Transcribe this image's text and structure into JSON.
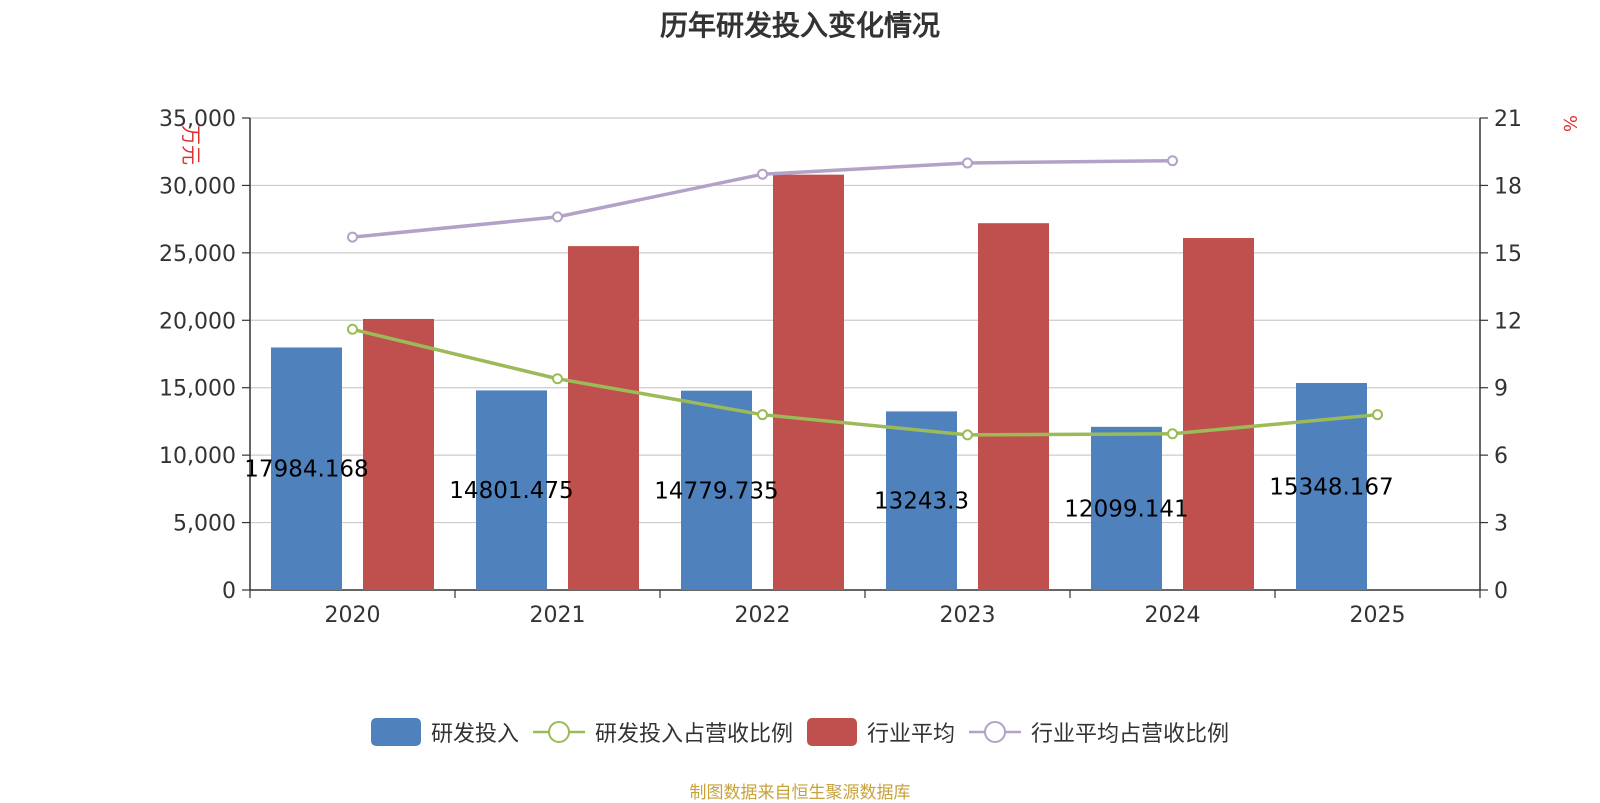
{
  "chart_data": {
    "type": "bar",
    "title": "历年研发投入变化情况",
    "categories": [
      "2020",
      "2021",
      "2022",
      "2023",
      "2024",
      "2025"
    ],
    "y_left": {
      "label": "万元",
      "ylim": [
        0,
        35000
      ],
      "ticks": [
        "0",
        "5,000",
        "10,000",
        "15,000",
        "20,000",
        "25,000",
        "30,000",
        "35,000"
      ],
      "tick_values": [
        0,
        5000,
        10000,
        15000,
        20000,
        25000,
        30000,
        35000
      ]
    },
    "y_right": {
      "label": "%",
      "ylim": [
        0,
        21
      ],
      "ticks": [
        "0",
        "3",
        "6",
        "9",
        "12",
        "15",
        "18",
        "21"
      ],
      "tick_values": [
        0,
        3,
        6,
        9,
        12,
        15,
        18,
        21
      ]
    },
    "grid": true,
    "legend_position": "bottom",
    "series": [
      {
        "name": "研发投入",
        "type": "bar",
        "axis": "left",
        "color": "#4f81bd",
        "values": [
          17984.168,
          14801.475,
          14779.735,
          13243.3,
          12099.141,
          15348.167
        ],
        "labels": [
          "17984.168",
          "14801.475",
          "14779.735",
          "13243.3",
          "12099.141",
          "15348.167"
        ]
      },
      {
        "name": "研发投入占营收比例",
        "type": "line",
        "axis": "right",
        "color": "#9bbb59",
        "values": [
          11.6,
          9.4,
          7.8,
          6.9,
          6.95,
          7.8
        ]
      },
      {
        "name": "行业平均",
        "type": "bar",
        "axis": "left",
        "color": "#c0504d",
        "values": [
          20100,
          25500,
          30800,
          27200,
          26100,
          null
        ]
      },
      {
        "name": "行业平均占营收比例",
        "type": "line",
        "axis": "right",
        "color": "#b3a2c7",
        "values": [
          15.7,
          16.6,
          18.5,
          19.0,
          19.1,
          null
        ]
      }
    ]
  },
  "source_text": "制图数据来自恒生聚源数据库"
}
